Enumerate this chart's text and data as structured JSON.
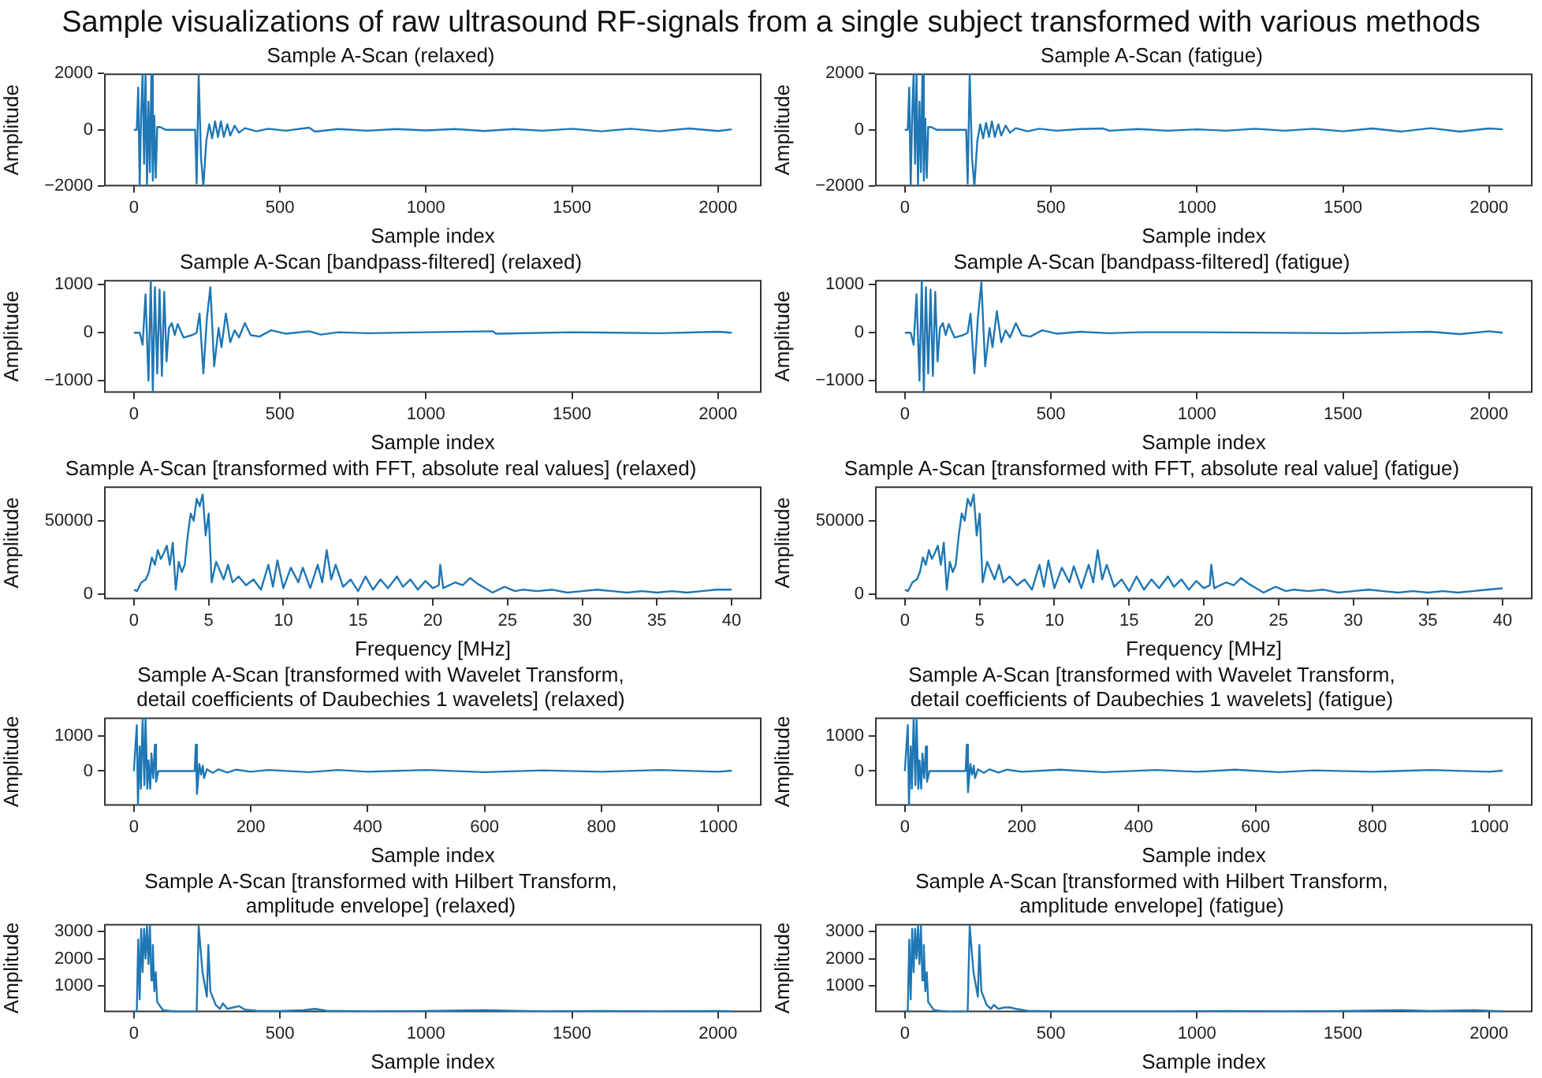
{
  "chart_data": [
    {
      "type": "other",
      "title": "Sample visualizations of raw ultrasound RF-signals from a single subject transformed with various methods"
    },
    {
      "type": "line",
      "title": "Sample A-Scan (relaxed)",
      "xlabel": "Sample index",
      "ylabel": "Amplitude",
      "color": "#1f77b4",
      "xlim": [
        -102,
        2149
      ],
      "ylim": [
        -2000,
        2000
      ],
      "xticks": [
        0,
        500,
        1000,
        1500,
        2000
      ],
      "yticks": [
        -2000,
        0,
        2000
      ],
      "x": [
        0,
        10,
        15,
        20,
        25,
        30,
        35,
        40,
        45,
        50,
        55,
        60,
        65,
        70,
        75,
        80,
        90,
        110,
        210,
        215,
        222,
        230,
        238,
        248,
        258,
        268,
        278,
        288,
        298,
        308,
        320,
        330,
        345,
        360,
        380,
        420,
        460,
        520,
        600,
        620,
        700,
        800,
        900,
        1000,
        1100,
        1200,
        1300,
        1400,
        1500,
        1600,
        1700,
        1800,
        1900,
        2000,
        2047
      ],
      "values": [
        0,
        0,
        1500,
        -2000,
        600,
        2000,
        -1200,
        2000,
        -2000,
        1000,
        -1500,
        2000,
        -1800,
        500,
        -1700,
        100,
        100,
        0,
        0,
        -1900,
        2000,
        -1000,
        -2000,
        -400,
        200,
        -300,
        300,
        -250,
        300,
        -250,
        200,
        -200,
        150,
        -100,
        60,
        -50,
        40,
        -30,
        80,
        -60,
        30,
        -30,
        30,
        -20,
        30,
        -40,
        30,
        -30,
        40,
        -50,
        40,
        -50,
        50,
        -40,
        20
      ]
    },
    {
      "type": "line",
      "title": "Sample A-Scan (fatigue)",
      "xlabel": "Sample index",
      "ylabel": "Amplitude",
      "color": "#1f77b4",
      "xlim": [
        -102,
        2149
      ],
      "ylim": [
        -2000,
        2000
      ],
      "xticks": [
        0,
        500,
        1000,
        1500,
        2000
      ],
      "yticks": [
        -2000,
        0,
        2000
      ],
      "x": [
        0,
        10,
        15,
        20,
        25,
        30,
        35,
        40,
        45,
        50,
        55,
        60,
        65,
        70,
        75,
        80,
        90,
        110,
        210,
        215,
        222,
        230,
        238,
        248,
        258,
        268,
        278,
        288,
        298,
        308,
        320,
        330,
        345,
        360,
        380,
        420,
        460,
        520,
        600,
        680,
        700,
        800,
        900,
        1000,
        1100,
        1200,
        1300,
        1400,
        1500,
        1600,
        1700,
        1800,
        1900,
        2000,
        2047
      ],
      "values": [
        0,
        0,
        1500,
        -2000,
        500,
        2000,
        -1200,
        2000,
        -2000,
        1000,
        -1500,
        2000,
        -1800,
        400,
        -1700,
        100,
        100,
        0,
        0,
        -1900,
        2000,
        -1000,
        -2000,
        -400,
        200,
        -300,
        250,
        -250,
        300,
        -250,
        200,
        -200,
        150,
        -100,
        60,
        -50,
        40,
        -30,
        30,
        50,
        -30,
        30,
        -30,
        20,
        -30,
        40,
        -30,
        40,
        -50,
        50,
        -60,
        60,
        -60,
        50,
        20
      ]
    },
    {
      "type": "line",
      "title": "Sample A-Scan [bandpass-filtered] (relaxed)",
      "xlabel": "Sample index",
      "ylabel": "Amplitude",
      "color": "#1f77b4",
      "xlim": [
        -102,
        2149
      ],
      "ylim": [
        -1250,
        1100
      ],
      "xticks": [
        0,
        500,
        1000,
        1500,
        2000
      ],
      "yticks": [
        -1000,
        0,
        1000
      ],
      "x": [
        0,
        20,
        30,
        40,
        50,
        58,
        65,
        72,
        80,
        88,
        96,
        104,
        112,
        120,
        130,
        140,
        150,
        170,
        200,
        215,
        225,
        238,
        250,
        262,
        275,
        290,
        300,
        315,
        330,
        345,
        360,
        380,
        400,
        430,
        470,
        520,
        600,
        640,
        700,
        800,
        1000,
        1230,
        1240,
        1500,
        1800,
        2000,
        2047
      ],
      "values": [
        0,
        0,
        -250,
        800,
        -1000,
        1100,
        -1250,
        950,
        -850,
        900,
        -900,
        850,
        -600,
        100,
        200,
        -50,
        180,
        -100,
        -50,
        0,
        400,
        -850,
        300,
        950,
        -700,
        100,
        -300,
        400,
        -200,
        50,
        -100,
        200,
        -50,
        -80,
        50,
        -20,
        30,
        -40,
        10,
        -10,
        10,
        30,
        -20,
        10,
        -10,
        20,
        0
      ]
    },
    {
      "type": "line",
      "title": "Sample A-Scan [bandpass-filtered] (fatigue)",
      "xlabel": "Sample index",
      "ylabel": "Amplitude",
      "color": "#1f77b4",
      "xlim": [
        -102,
        2149
      ],
      "ylim": [
        -1250,
        1100
      ],
      "xticks": [
        0,
        500,
        1000,
        1500,
        2000
      ],
      "yticks": [
        -1000,
        0,
        1000
      ],
      "x": [
        0,
        20,
        30,
        40,
        50,
        58,
        65,
        72,
        80,
        88,
        96,
        104,
        112,
        120,
        130,
        140,
        150,
        170,
        200,
        215,
        225,
        238,
        250,
        262,
        275,
        290,
        300,
        315,
        330,
        345,
        360,
        380,
        400,
        430,
        470,
        520,
        600,
        700,
        800,
        1000,
        1500,
        1800,
        1900,
        2000,
        2047
      ],
      "values": [
        0,
        0,
        -250,
        800,
        -1000,
        1100,
        -1250,
        950,
        -850,
        900,
        -900,
        850,
        -600,
        100,
        200,
        -50,
        180,
        -100,
        -50,
        0,
        400,
        -850,
        300,
        1050,
        -700,
        100,
        -300,
        450,
        -200,
        50,
        -100,
        200,
        -50,
        -80,
        50,
        -20,
        20,
        -10,
        10,
        10,
        -10,
        20,
        -30,
        30,
        0
      ]
    },
    {
      "type": "line",
      "title": "Sample A-Scan [transformed with FFT, absolute real values] (relaxed)",
      "xlabel": "Frequency [MHz]",
      "ylabel": "Amplitude",
      "color": "#1f77b4",
      "xlim": [
        -2,
        42
      ],
      "ylim": [
        -3500,
        73500
      ],
      "xticks": [
        0,
        5,
        10,
        15,
        20,
        25,
        30,
        35,
        40
      ],
      "yticks": [
        0,
        50000
      ],
      "x": [
        0,
        0.2,
        0.5,
        0.8,
        1,
        1.2,
        1.4,
        1.6,
        1.8,
        2,
        2.2,
        2.4,
        2.6,
        2.8,
        3,
        3.2,
        3.4,
        3.6,
        3.8,
        4,
        4.2,
        4.4,
        4.6,
        4.8,
        5,
        5.2,
        5.5,
        6,
        6.3,
        6.6,
        7,
        7.5,
        8,
        8.5,
        9,
        9.3,
        9.6,
        10,
        10.5,
        11,
        11.3,
        11.8,
        12.3,
        12.6,
        12.9,
        13.2,
        13.5,
        14,
        14.5,
        15,
        15.5,
        16,
        16.5,
        17,
        17.6,
        18,
        18.5,
        19,
        19.5,
        20,
        20.4,
        20.5,
        20.7,
        21.5,
        22,
        22.5,
        23,
        23.5,
        24,
        24.8,
        25.5,
        26,
        27,
        28,
        29,
        30,
        31,
        32,
        33,
        34,
        35,
        36,
        37,
        38,
        39,
        40
      ],
      "values": [
        3000,
        2000,
        8000,
        10000,
        15000,
        25000,
        20000,
        30000,
        24000,
        28000,
        33000,
        20000,
        35000,
        3000,
        22000,
        15000,
        20000,
        40000,
        55000,
        50000,
        65000,
        60000,
        68000,
        40000,
        55000,
        8000,
        22000,
        10000,
        20000,
        8000,
        12000,
        6000,
        10000,
        3000,
        20000,
        5000,
        23000,
        4000,
        18000,
        8000,
        18000,
        4000,
        20000,
        8000,
        30000,
        10000,
        20000,
        5000,
        10000,
        2000,
        12000,
        3000,
        10000,
        4000,
        12000,
        5000,
        10000,
        3000,
        9000,
        4000,
        6000,
        20000,
        4000,
        8000,
        6000,
        11000,
        7000,
        4000,
        1000,
        5000,
        2000,
        3000,
        2000,
        3000,
        1000,
        2000,
        3000,
        2000,
        1000,
        2000,
        1000,
        2000,
        1000,
        2000,
        3000,
        3000
      ]
    },
    {
      "type": "line",
      "title": "Sample A-Scan [transformed with FFT, absolute real value] (fatigue)",
      "xlabel": "Frequency [MHz]",
      "ylabel": "Amplitude",
      "color": "#1f77b4",
      "xlim": [
        -2,
        42
      ],
      "ylim": [
        -3500,
        73500
      ],
      "xticks": [
        0,
        5,
        10,
        15,
        20,
        25,
        30,
        35,
        40
      ],
      "yticks": [
        0,
        50000
      ],
      "x": [
        0,
        0.2,
        0.5,
        0.8,
        1,
        1.2,
        1.4,
        1.6,
        1.8,
        2,
        2.2,
        2.4,
        2.6,
        2.8,
        3,
        3.2,
        3.4,
        3.6,
        3.8,
        4,
        4.2,
        4.4,
        4.6,
        4.8,
        5,
        5.2,
        5.5,
        6,
        6.3,
        6.6,
        7,
        7.5,
        8,
        8.5,
        9,
        9.3,
        9.6,
        10,
        10.5,
        11,
        11.3,
        11.8,
        12.3,
        12.6,
        12.9,
        13.2,
        13.5,
        14,
        14.5,
        15,
        15.5,
        16,
        16.5,
        17,
        17.6,
        18,
        18.5,
        19,
        19.5,
        20,
        20.4,
        20.5,
        20.7,
        21.5,
        22,
        22.5,
        23,
        23.5,
        24,
        24.8,
        25.5,
        26,
        27,
        28,
        29,
        30,
        31,
        32,
        33,
        34,
        35,
        36,
        37,
        38,
        39,
        40
      ],
      "values": [
        3000,
        2000,
        8000,
        10000,
        15000,
        25000,
        20000,
        30000,
        24000,
        28000,
        33000,
        20000,
        35000,
        3000,
        22000,
        15000,
        20000,
        40000,
        55000,
        50000,
        65000,
        60000,
        68000,
        40000,
        55000,
        8000,
        22000,
        10000,
        20000,
        8000,
        12000,
        6000,
        10000,
        3000,
        20000,
        5000,
        23000,
        4000,
        18000,
        8000,
        19000,
        4000,
        20000,
        8000,
        30000,
        10000,
        20000,
        5000,
        10000,
        2000,
        12000,
        3000,
        10000,
        4000,
        12000,
        5000,
        10000,
        3000,
        9000,
        4000,
        6000,
        20000,
        4000,
        8000,
        6000,
        11000,
        7000,
        4000,
        1000,
        5000,
        2000,
        3000,
        2000,
        3000,
        1000,
        2000,
        3000,
        2000,
        1000,
        2000,
        1000,
        2000,
        1000,
        2000,
        3000,
        4000
      ]
    },
    {
      "type": "line",
      "title": "Sample A-Scan [transformed with Wavelet Transform,\ndetail coefficients of Daubechies 1 wavelets] (relaxed)",
      "xlabel": "Sample index",
      "ylabel": "Amplitude",
      "color": "#1f77b4",
      "xlim": [
        -51,
        1074
      ],
      "ylim": [
        -980,
        1520
      ],
      "xticks": [
        0,
        200,
        400,
        600,
        800,
        1000
      ],
      "yticks": [
        0,
        1000
      ],
      "x": [
        0,
        5,
        7,
        10,
        12,
        15,
        18,
        20,
        23,
        25,
        28,
        30,
        33,
        36,
        38,
        42,
        104,
        106,
        108,
        112,
        115,
        118,
        120,
        125,
        135,
        145,
        160,
        175,
        200,
        230,
        300,
        350,
        400,
        500,
        600,
        700,
        800,
        900,
        1000,
        1023
      ],
      "values": [
        0,
        1300,
        -950,
        700,
        -500,
        1500,
        -400,
        1500,
        -500,
        300,
        -500,
        500,
        -200,
        750,
        -300,
        0,
        0,
        750,
        -650,
        200,
        -100,
        150,
        -200,
        50,
        -50,
        50,
        -40,
        40,
        -20,
        30,
        -30,
        30,
        -20,
        30,
        -30,
        20,
        -20,
        30,
        -20,
        10
      ]
    },
    {
      "type": "line",
      "title": "Sample A-Scan [transformed with Wavelet Transform,\ndetail coefficients of Daubechies 1 wavelets] (fatigue)",
      "xlabel": "Sample index",
      "ylabel": "Amplitude",
      "color": "#1f77b4",
      "xlim": [
        -51,
        1074
      ],
      "ylim": [
        -980,
        1520
      ],
      "xticks": [
        0,
        200,
        400,
        600,
        800,
        1000
      ],
      "yticks": [
        0,
        1000
      ],
      "x": [
        0,
        5,
        7,
        10,
        12,
        15,
        18,
        20,
        23,
        25,
        28,
        30,
        33,
        36,
        38,
        42,
        104,
        106,
        108,
        112,
        115,
        118,
        120,
        125,
        135,
        145,
        160,
        175,
        200,
        265,
        340,
        430,
        500,
        565,
        640,
        700,
        800,
        900,
        1000,
        1023
      ],
      "values": [
        0,
        1300,
        -950,
        700,
        -500,
        1500,
        -400,
        1500,
        -500,
        300,
        -500,
        500,
        -200,
        700,
        -300,
        0,
        0,
        750,
        -600,
        200,
        -100,
        150,
        -200,
        50,
        -50,
        50,
        -40,
        40,
        -20,
        40,
        -30,
        30,
        -20,
        40,
        -30,
        20,
        -20,
        30,
        -20,
        10
      ]
    },
    {
      "type": "line",
      "title": "Sample A-Scan [transformed with Hilbert Transform,\namplitude envelope] (relaxed)",
      "xlabel": "Sample index",
      "ylabel": "Amplitude",
      "color": "#1f77b4",
      "xlim": [
        -102,
        2149
      ],
      "ylim": [
        30,
        3280
      ],
      "xticks": [
        0,
        500,
        1000,
        1500,
        2000
      ],
      "yticks": [
        1000,
        2000,
        3000
      ],
      "x": [
        0,
        10,
        15,
        20,
        25,
        30,
        35,
        40,
        45,
        50,
        55,
        60,
        65,
        70,
        75,
        80,
        100,
        150,
        215,
        222,
        235,
        250,
        255,
        262,
        280,
        295,
        305,
        320,
        340,
        360,
        380,
        420,
        500,
        580,
        620,
        660,
        800,
        1000,
        1200,
        1400,
        1600,
        1800,
        2000,
        2047
      ],
      "values": [
        50,
        80,
        2700,
        500,
        3100,
        1500,
        3100,
        2000,
        3200,
        1800,
        3200,
        1200,
        2500,
        800,
        1500,
        400,
        100,
        40,
        40,
        3200,
        1500,
        600,
        2500,
        800,
        300,
        150,
        350,
        150,
        200,
        250,
        120,
        80,
        70,
        100,
        150,
        80,
        60,
        70,
        100,
        60,
        70,
        60,
        70,
        60
      ]
    },
    {
      "type": "line",
      "title": "Sample A-Scan [transformed with Hilbert Transform,\namplitude envelope] (fatigue)",
      "xlabel": "Sample index",
      "ylabel": "Amplitude",
      "color": "#1f77b4",
      "xlim": [
        -102,
        2149
      ],
      "ylim": [
        30,
        3280
      ],
      "xticks": [
        0,
        500,
        1000,
        1500,
        2000
      ],
      "yticks": [
        1000,
        2000,
        3000
      ],
      "x": [
        0,
        10,
        15,
        20,
        25,
        30,
        35,
        40,
        45,
        50,
        55,
        60,
        65,
        70,
        75,
        80,
        100,
        150,
        215,
        222,
        235,
        250,
        255,
        262,
        280,
        295,
        305,
        320,
        340,
        360,
        380,
        420,
        500,
        700,
        900,
        1100,
        1300,
        1500,
        1700,
        1800,
        1950,
        2047
      ],
      "values": [
        50,
        80,
        2700,
        500,
        3100,
        1500,
        3100,
        2000,
        3200,
        1800,
        3200,
        1200,
        2500,
        800,
        1500,
        400,
        100,
        40,
        40,
        3200,
        1500,
        600,
        2500,
        800,
        300,
        150,
        300,
        150,
        200,
        200,
        150,
        80,
        60,
        60,
        60,
        70,
        60,
        70,
        100,
        70,
        100,
        60
      ]
    }
  ]
}
